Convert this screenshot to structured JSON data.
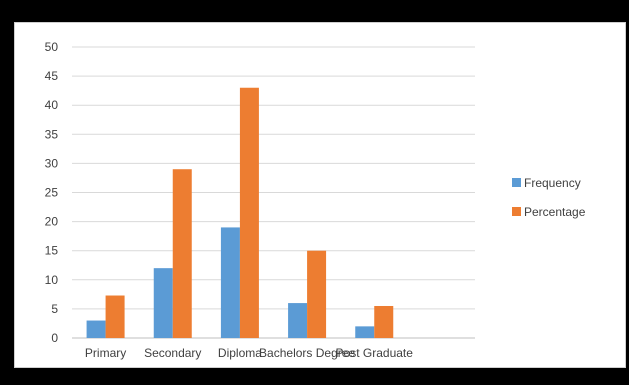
{
  "chart_data": {
    "type": "bar",
    "title": "",
    "xlabel": "",
    "ylabel": "",
    "categories": [
      "Primary",
      "Secondary",
      "Diploma",
      "Bachelors Degree",
      "Post Graduate"
    ],
    "series": [
      {
        "name": "Frequency",
        "color": "#5b9bd5",
        "values": [
          3,
          12,
          19,
          6,
          2
        ]
      },
      {
        "name": "Percentage",
        "color": "#ed7d31",
        "values": [
          7.3,
          29,
          43,
          15,
          5.5
        ]
      }
    ],
    "ylim": [
      0,
      50
    ],
    "yticks": [
      "0",
      "5",
      "10",
      "15",
      "20",
      "25",
      "30",
      "35",
      "40",
      "45",
      "50"
    ],
    "grid": true,
    "legend_position": "right",
    "empty_category_slots": 1
  },
  "caption": {
    "text": ""
  },
  "colors": {
    "gridline": "#d9d9d9",
    "axis": "#bfbfbf",
    "text": "#404040"
  }
}
